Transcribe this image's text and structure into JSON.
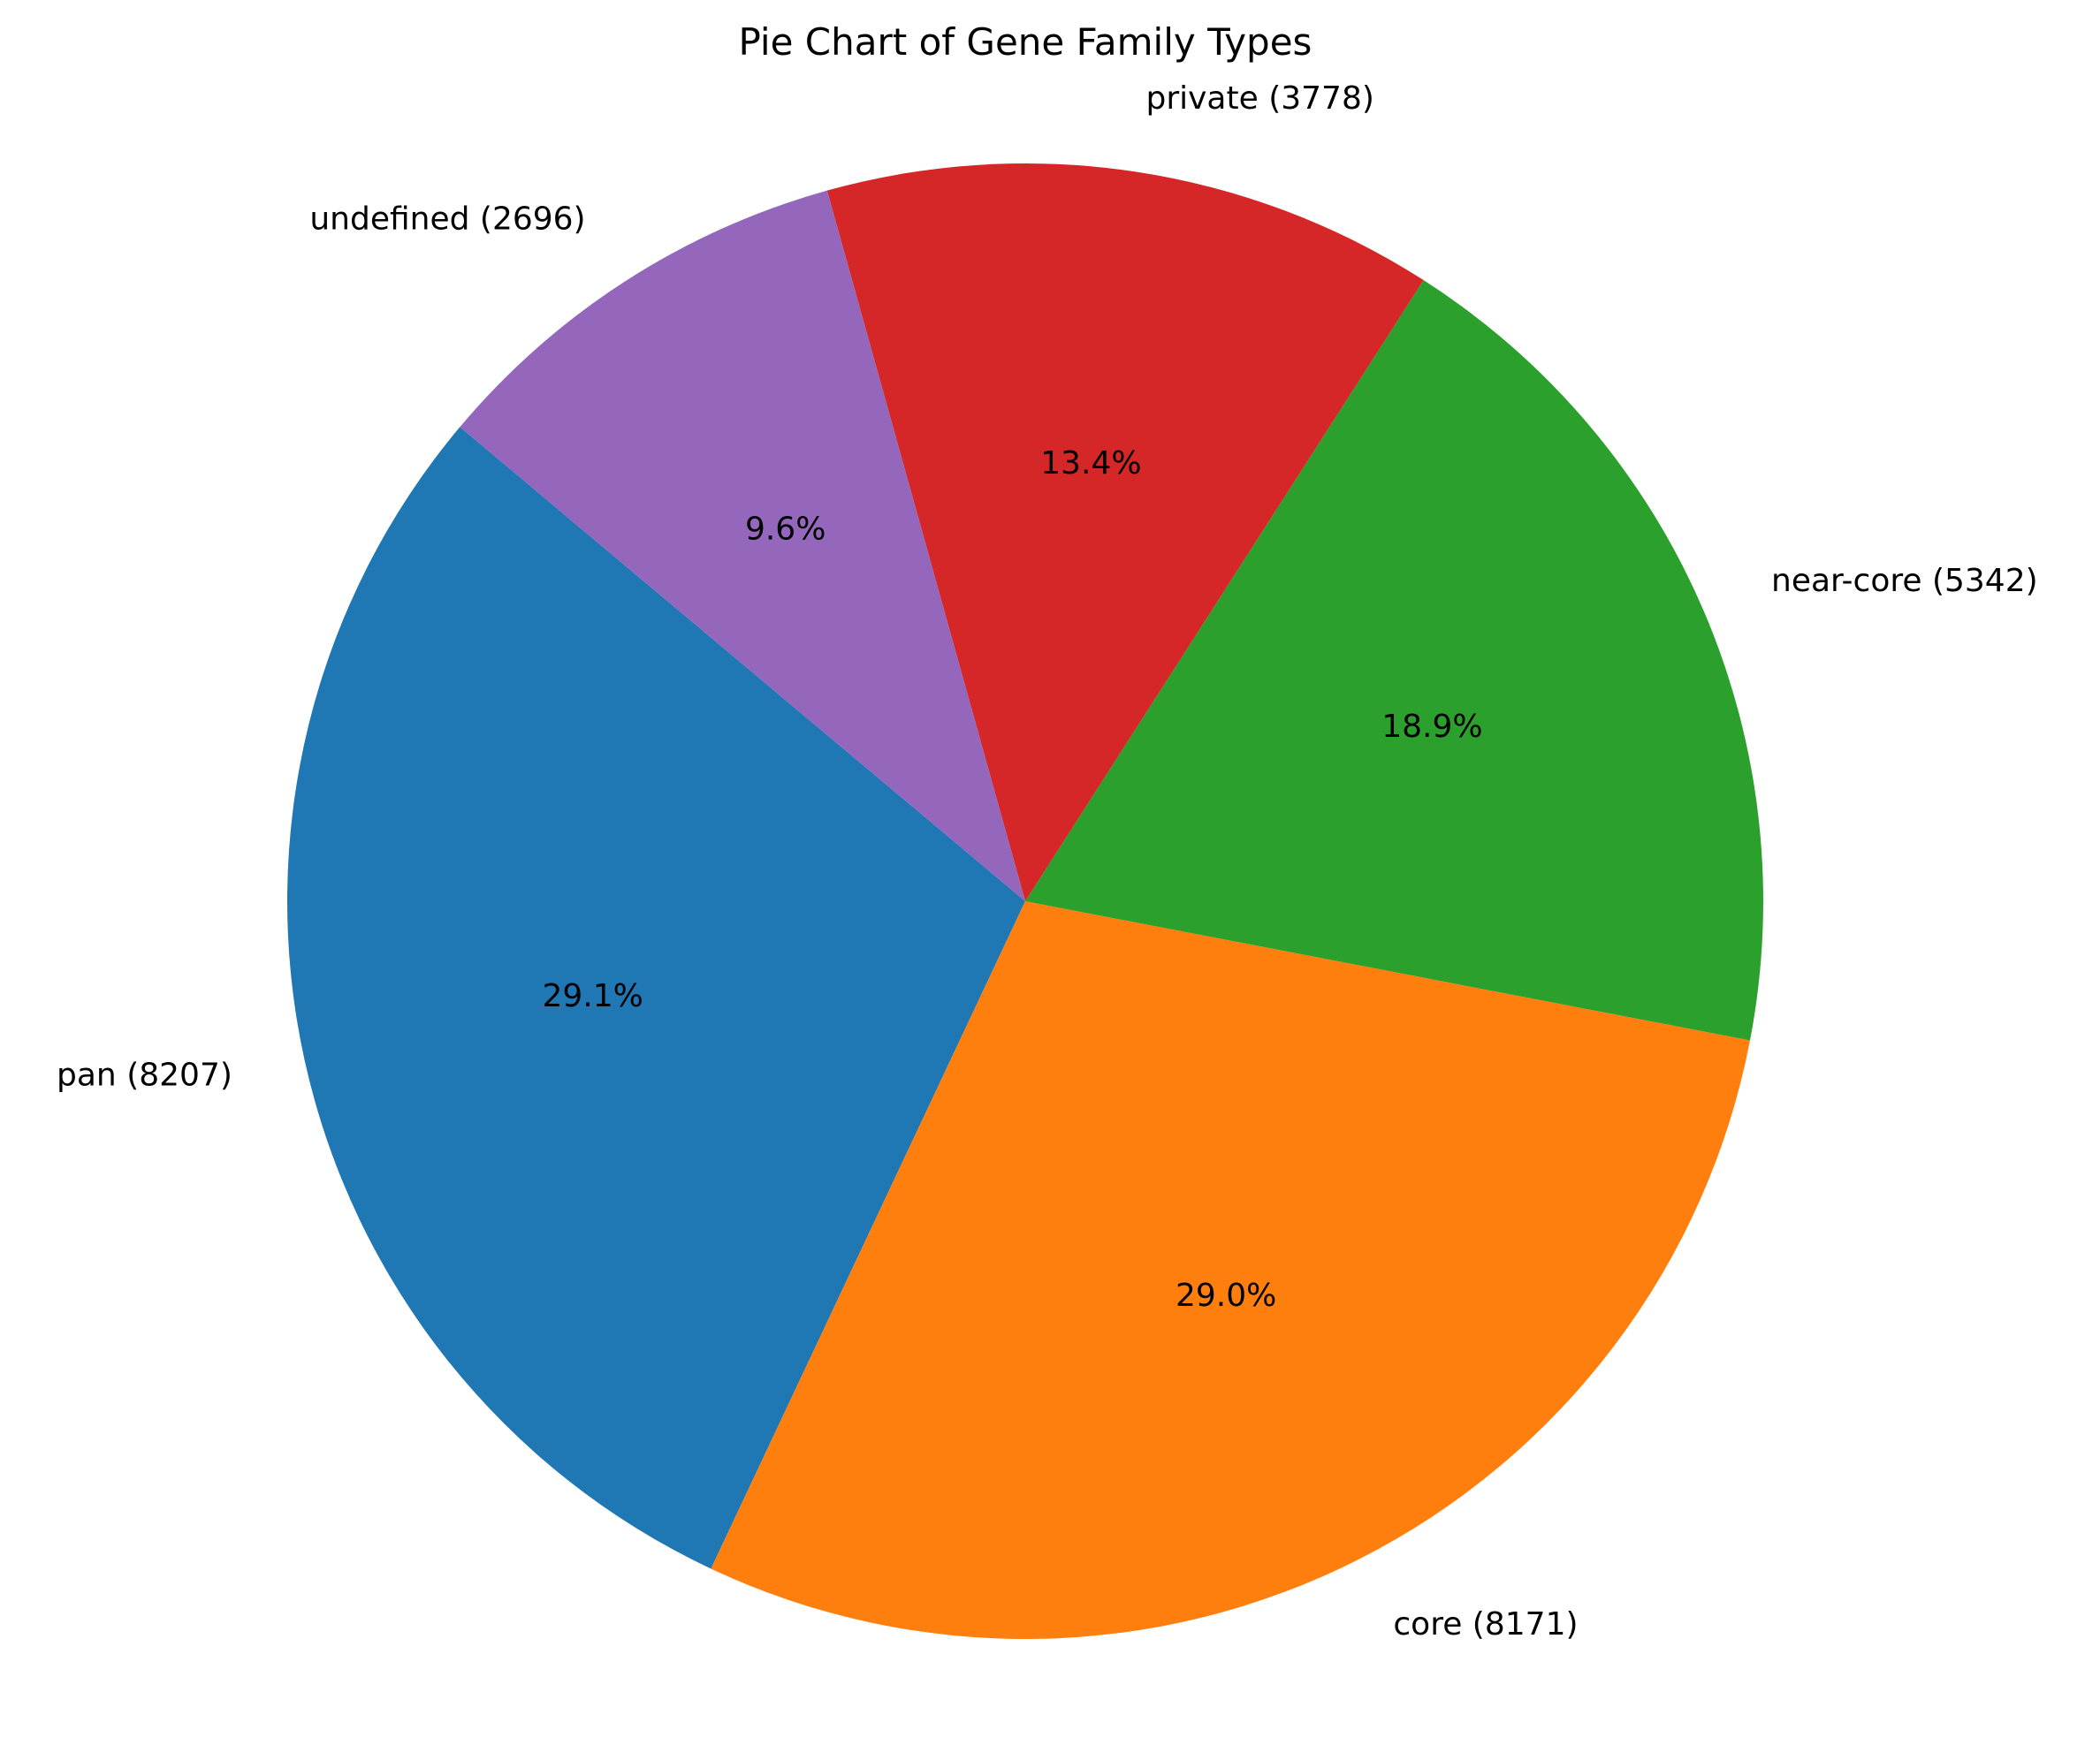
{
  "chart_data": {
    "type": "pie",
    "title": "Pie Chart of Gene Family Types",
    "start_angle_deg": 140,
    "direction": "counterclockwise",
    "slices": [
      {
        "key": "pan",
        "label": "pan (8207)",
        "value": 8207,
        "percent": "29.1%",
        "color": "#1f77b4"
      },
      {
        "key": "core",
        "label": "core (8171)",
        "value": 8171,
        "percent": "29.0%",
        "color": "#ff7f0e"
      },
      {
        "key": "near-core",
        "label": "near-core (5342)",
        "value": 5342,
        "percent": "18.9%",
        "color": "#2ca02c"
      },
      {
        "key": "private",
        "label": "private (3778)",
        "value": 3778,
        "percent": "13.4%",
        "color": "#d62728"
      },
      {
        "key": "undefined",
        "label": "undefined (2696)",
        "value": 2696,
        "percent": "9.6%",
        "color": "#9467bd"
      }
    ]
  }
}
